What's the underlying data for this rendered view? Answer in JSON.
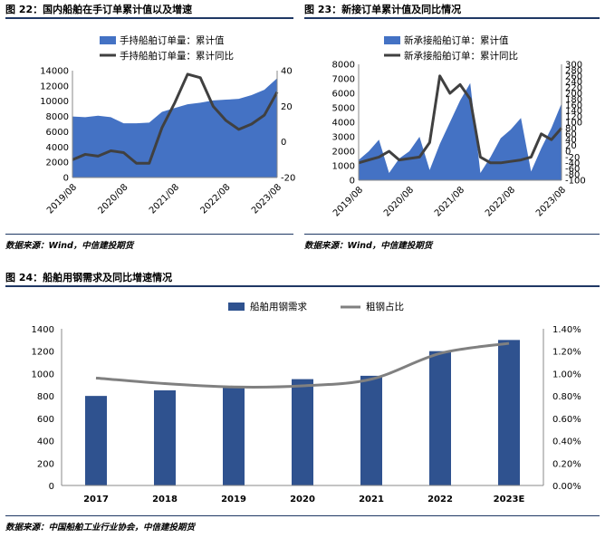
{
  "figures": {
    "fig22": {
      "title": "图 22：国内船舶在手订单累计值以及增速",
      "source": "数据来源：Wind，中信建投期货"
    },
    "fig23": {
      "title": "图 23：新接订单累计值及同比情况",
      "source": "数据来源：Wind，中信建投期货"
    },
    "fig24": {
      "title": "图 24：船舶用钢需求及同比增速情况",
      "source": "数据来源：中国船舶工业行业协会，中信建投期货"
    }
  },
  "colors": {
    "area_blue": "#4472c4",
    "line_dark": "#404040",
    "bar_blue": "#2f528f",
    "line_gray": "#808080",
    "rule": "#1f3864"
  },
  "chart_data": [
    {
      "id": "fig22",
      "type": "area",
      "x": [
        "2019/08",
        "2019/11",
        "2020/02",
        "2020/05",
        "2020/08",
        "2020/11",
        "2021/02",
        "2021/05",
        "2021/08",
        "2021/11",
        "2022/02",
        "2022/05",
        "2022/08",
        "2022/11",
        "2023/02",
        "2023/05",
        "2023/08"
      ],
      "xticks": [
        "2019/08",
        "2020/08",
        "2021/08",
        "2022/08",
        "2023/08"
      ],
      "series": [
        {
          "name": "手持船舶订单量：累计值",
          "type": "area",
          "axis": "left",
          "values": [
            8000,
            7900,
            8100,
            7900,
            7100,
            7100,
            7200,
            8600,
            9100,
            9600,
            9800,
            10100,
            10200,
            10300,
            10800,
            11500,
            13000
          ]
        },
        {
          "name": "手持船舶订单量：累计同比",
          "type": "line",
          "axis": "right",
          "values": [
            -10,
            -7,
            -8,
            -5,
            -6,
            -12,
            -12,
            8,
            22,
            38,
            36,
            20,
            12,
            7,
            10,
            15,
            28
          ]
        }
      ],
      "ylim_left": [
        0,
        14000
      ],
      "yticks_left": [
        0,
        2000,
        4000,
        6000,
        8000,
        10000,
        12000,
        14000
      ],
      "ylim_right": [
        -20,
        40
      ],
      "yticks_right": [
        -20,
        0,
        20,
        40
      ],
      "legend": "top-left"
    },
    {
      "id": "fig23",
      "type": "area",
      "x": [
        "2019/08",
        "2019/11",
        "2020/01",
        "2020/03",
        "2020/05",
        "2020/08",
        "2020/11",
        "2021/01",
        "2021/03",
        "2021/05",
        "2021/08",
        "2021/11",
        "2022/01",
        "2022/03",
        "2022/05",
        "2022/08",
        "2022/11",
        "2023/01",
        "2023/03",
        "2023/05",
        "2023/08"
      ],
      "xticks": [
        "2019/08",
        "2020/08",
        "2021/08",
        "2022/08",
        "2023/08"
      ],
      "series": [
        {
          "name": "新承接船舶订单：累计值",
          "type": "area",
          "axis": "left",
          "values": [
            1400,
            2000,
            2800,
            500,
            1500,
            2000,
            3000,
            700,
            2500,
            4000,
            5500,
            6700,
            500,
            1600,
            2900,
            3500,
            4300,
            600,
            2200,
            3600,
            5300
          ]
        },
        {
          "name": "新承接船舶订单：累计同比",
          "type": "line",
          "axis": "right",
          "values": [
            -40,
            -30,
            -20,
            0,
            -30,
            -25,
            -20,
            30,
            260,
            200,
            230,
            180,
            -20,
            -40,
            -40,
            -35,
            -30,
            -20,
            60,
            40,
            80
          ]
        }
      ],
      "ylim_left": [
        0,
        8000
      ],
      "yticks_left": [
        0,
        1000,
        2000,
        3000,
        4000,
        5000,
        6000,
        7000,
        8000
      ],
      "ylim_right": [
        -100,
        300
      ],
      "yticks_right": [
        -100,
        -80,
        -60,
        -40,
        -20,
        0,
        20,
        40,
        60,
        80,
        100,
        120,
        140,
        160,
        180,
        200,
        220,
        240,
        260,
        280,
        300
      ],
      "legend": "top-left"
    },
    {
      "id": "fig24",
      "type": "bar",
      "categories": [
        "2017",
        "2018",
        "2019",
        "2020",
        "2021",
        "2022",
        "2023E"
      ],
      "series": [
        {
          "name": "船舶用钢需求",
          "type": "bar",
          "axis": "left",
          "values": [
            800,
            850,
            880,
            950,
            980,
            1200,
            1300
          ]
        },
        {
          "name": "粗钢占比",
          "type": "line",
          "axis": "right",
          "values": [
            0.96,
            0.91,
            0.88,
            0.89,
            0.95,
            1.18,
            1.27
          ]
        }
      ],
      "ylim_left": [
        0,
        1400
      ],
      "yticks_left": [
        0,
        200,
        400,
        600,
        800,
        1000,
        1200,
        1400
      ],
      "ylim_right": [
        0,
        1.4
      ],
      "yticks_right": [
        "0.00%",
        "0.20%",
        "0.40%",
        "0.60%",
        "0.80%",
        "1.00%",
        "1.20%",
        "1.40%"
      ],
      "legend": "top-center"
    }
  ]
}
